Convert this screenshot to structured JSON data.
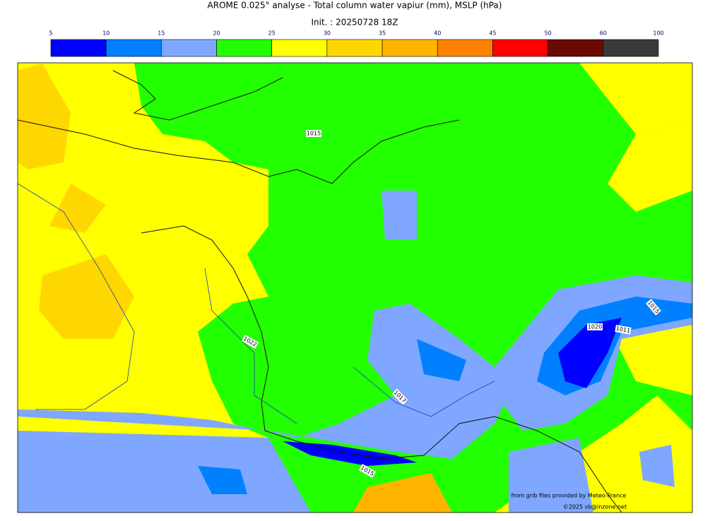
{
  "title": "AROME 0.025° analyse - Total column water vapiur (mm), MSLP (hPa)",
  "subtitle": "Init. : 20250728 18Z",
  "colorbar": {
    "ticks": [
      5,
      10,
      15,
      20,
      25,
      30,
      35,
      40,
      45,
      50,
      60,
      100
    ],
    "colors": [
      "#0000ff",
      "#0080ff",
      "#7fa7ff",
      "#22ff00",
      "#ffff00",
      "#ffd700",
      "#ffb400",
      "#ff8000",
      "#ff0000",
      "#6b0a00",
      "#3a3a3a"
    ]
  },
  "isobar_labels": [
    "1015",
    "1022",
    "1017",
    "1020",
    "1011",
    "1015",
    "1015"
  ],
  "credits": [
    "from grib files provided by Meteo-France",
    "©2025 sb@inzone.net"
  ]
}
